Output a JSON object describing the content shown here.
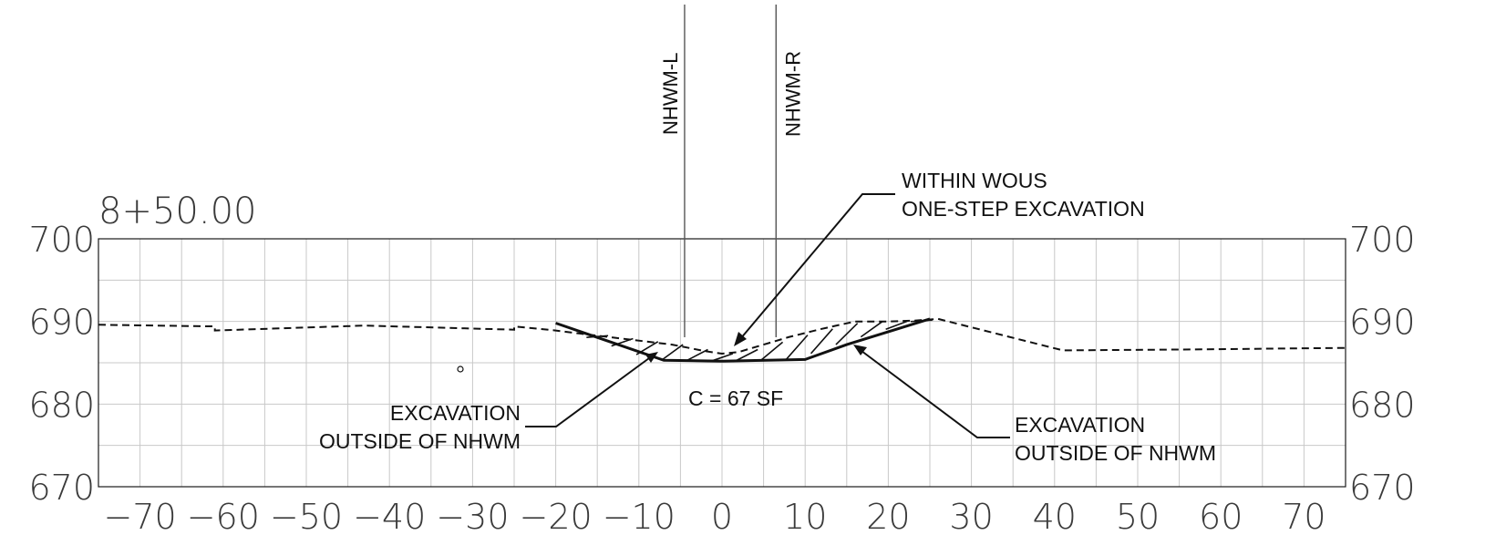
{
  "station": "8+50.00",
  "x_axis": {
    "ticks": [
      "−70",
      "−60",
      "−50",
      "−40",
      "−30",
      "−20",
      "−10",
      "0",
      "10",
      "20",
      "30",
      "40",
      "50",
      "60",
      "70"
    ],
    "range": [
      -75,
      75
    ],
    "grid_step": 5
  },
  "y_axis": {
    "ticks": [
      "670",
      "680",
      "690",
      "700"
    ],
    "range": [
      670,
      700
    ],
    "grid_step": 5
  },
  "nhwm": {
    "left": {
      "label": "NHWM-L",
      "offset": -4.5
    },
    "right": {
      "label": "NHWM-R",
      "offset": 6.5
    }
  },
  "annotations": {
    "area": "C = 67 SF",
    "within_wous": [
      "WITHIN WOUS",
      "ONE-STEP EXCAVATION"
    ],
    "outside_left": [
      "EXCAVATION",
      "OUTSIDE OF NHWM"
    ],
    "outside_right": [
      "EXCAVATION",
      "OUTSIDE OF NHWM"
    ]
  },
  "chart_data": {
    "type": "line",
    "title": "8+50.00",
    "xlabel": "",
    "ylabel": "",
    "xlim": [
      -75,
      75
    ],
    "ylim": [
      670,
      700
    ],
    "grid": true,
    "series": [
      {
        "style": "dashed",
        "x": [
          -75,
          -61,
          -61,
          -43,
          -25,
          -25,
          -20,
          -16,
          -11,
          -6,
          -2,
          0,
          2,
          5,
          8,
          12,
          16,
          20,
          23,
          26,
          41,
          55,
          75
        ],
        "y": [
          689.6,
          689.4,
          688.9,
          689.5,
          689.0,
          689.4,
          688.9,
          688.4,
          687.8,
          687.2,
          686.4,
          686.1,
          686.3,
          687.2,
          688.1,
          689.1,
          690.0,
          690.0,
          690.1,
          690.3,
          686.5,
          686.6,
          686.8
        ]
      },
      {
        "style": "solid",
        "x": [
          -20,
          -7,
          0,
          10,
          15,
          25
        ],
        "y": [
          689.8,
          685.3,
          685.2,
          685.4,
          687.2,
          690.3
        ]
      }
    ],
    "hatch_x": [
      -15,
      -12,
      -9,
      -6,
      -3,
      0,
      3,
      6,
      9,
      12,
      15,
      18,
      21,
      24
    ]
  }
}
